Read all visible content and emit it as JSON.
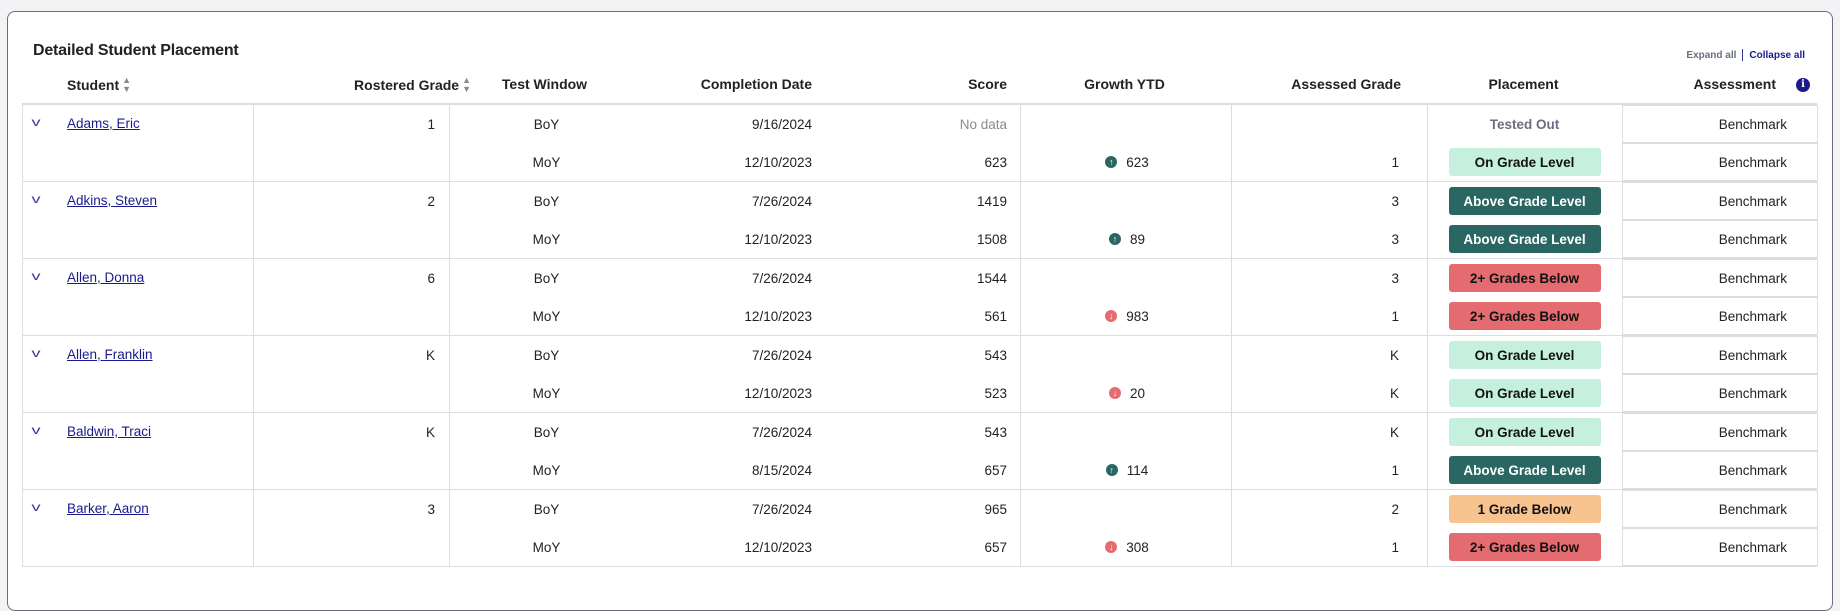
{
  "title": "Detailed Student Placement",
  "actions": {
    "expand_all": "Expand all",
    "collapse_all": "Collapse all"
  },
  "columns": {
    "student": "Student",
    "rostered_grade": "Rostered Grade",
    "test_window": "Test Window",
    "completion_date": "Completion Date",
    "score": "Score",
    "growth_ytd": "Growth YTD",
    "assessed_grade": "Assessed Grade",
    "placement": "Placement",
    "assessment": "Assessment"
  },
  "colors": {
    "on_grade": "#c5f0de",
    "above_grade": "#2b6762",
    "one_below": "#f7c48f",
    "two_below": "#e46c70",
    "tested_out_text": "#6b6e80",
    "growth_up": "#2b6762",
    "growth_down": "#e46c70",
    "link": "#1a1a8c"
  },
  "students": [
    {
      "name": "Adams, Eric",
      "rostered_grade": "1",
      "tests": [
        {
          "window": "BoY",
          "date": "9/16/2024",
          "score": "No data",
          "growth": null,
          "assessed": "",
          "placement": "Tested Out",
          "placement_type": "tested_out",
          "assessment": "Benchmark"
        },
        {
          "window": "MoY",
          "date": "12/10/2023",
          "score": "623",
          "growth": {
            "direction": "up",
            "value": "623"
          },
          "assessed": "1",
          "placement": "On Grade Level",
          "placement_type": "on_grade",
          "assessment": "Benchmark"
        }
      ]
    },
    {
      "name": "Adkins, Steven",
      "rostered_grade": "2",
      "tests": [
        {
          "window": "BoY",
          "date": "7/26/2024",
          "score": "1419",
          "growth": null,
          "assessed": "3",
          "placement": "Above Grade Level",
          "placement_type": "above_grade",
          "assessment": "Benchmark"
        },
        {
          "window": "MoY",
          "date": "12/10/2023",
          "score": "1508",
          "growth": {
            "direction": "up",
            "value": "89"
          },
          "assessed": "3",
          "placement": "Above Grade Level",
          "placement_type": "above_grade",
          "assessment": "Benchmark"
        }
      ]
    },
    {
      "name": "Allen, Donna",
      "rostered_grade": "6",
      "tests": [
        {
          "window": "BoY",
          "date": "7/26/2024",
          "score": "1544",
          "growth": null,
          "assessed": "3",
          "placement": "2+ Grades Below",
          "placement_type": "two_below",
          "assessment": "Benchmark"
        },
        {
          "window": "MoY",
          "date": "12/10/2023",
          "score": "561",
          "growth": {
            "direction": "down",
            "value": "983"
          },
          "assessed": "1",
          "placement": "2+ Grades Below",
          "placement_type": "two_below",
          "assessment": "Benchmark"
        }
      ]
    },
    {
      "name": "Allen, Franklin",
      "rostered_grade": "K",
      "tests": [
        {
          "window": "BoY",
          "date": "7/26/2024",
          "score": "543",
          "growth": null,
          "assessed": "K",
          "placement": "On Grade Level",
          "placement_type": "on_grade",
          "assessment": "Benchmark"
        },
        {
          "window": "MoY",
          "date": "12/10/2023",
          "score": "523",
          "growth": {
            "direction": "down",
            "value": "20"
          },
          "assessed": "K",
          "placement": "On Grade Level",
          "placement_type": "on_grade",
          "assessment": "Benchmark"
        }
      ]
    },
    {
      "name": "Baldwin, Traci",
      "rostered_grade": "K",
      "tests": [
        {
          "window": "BoY",
          "date": "7/26/2024",
          "score": "543",
          "growth": null,
          "assessed": "K",
          "placement": "On Grade Level",
          "placement_type": "on_grade",
          "assessment": "Benchmark"
        },
        {
          "window": "MoY",
          "date": "8/15/2024",
          "score": "657",
          "growth": {
            "direction": "up",
            "value": "114"
          },
          "assessed": "1",
          "placement": "Above Grade Level",
          "placement_type": "above_grade",
          "assessment": "Benchmark"
        }
      ]
    },
    {
      "name": "Barker, Aaron",
      "rostered_grade": "3",
      "tests": [
        {
          "window": "BoY",
          "date": "7/26/2024",
          "score": "965",
          "growth": null,
          "assessed": "2",
          "placement": "1 Grade Below",
          "placement_type": "one_below",
          "assessment": "Benchmark"
        },
        {
          "window": "MoY",
          "date": "12/10/2023",
          "score": "657",
          "growth": {
            "direction": "down",
            "value": "308"
          },
          "assessed": "1",
          "placement": "2+ Grades Below",
          "placement_type": "two_below",
          "assessment": "Benchmark"
        }
      ]
    }
  ]
}
